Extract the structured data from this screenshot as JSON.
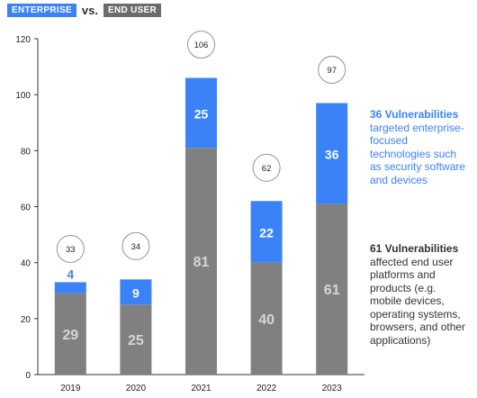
{
  "legend": {
    "enterprise_label": "ENTERPRISE",
    "vs_label": "vs.",
    "end_user_label": "END USER"
  },
  "colors": {
    "enterprise": "#3b82f6",
    "end_user": "#808080",
    "axis": "#333333"
  },
  "annotations": {
    "enterprise_title": "36 Vulnerabilities",
    "enterprise_text": "targeted enterprise-focused technologies such as security software and devices",
    "end_user_title": "61 Vulnerabilities",
    "end_user_text": "affected end user platforms and products (e.g. mobile devices, operating systems, browsers, and other applications)"
  },
  "chart_data": {
    "type": "bar",
    "stacked": true,
    "categories": [
      "2019",
      "2020",
      "2021",
      "2022",
      "2023"
    ],
    "series": [
      {
        "name": "END USER",
        "values": [
          29,
          25,
          81,
          40,
          61
        ]
      },
      {
        "name": "ENTERPRISE",
        "values": [
          4,
          9,
          25,
          22,
          36
        ]
      }
    ],
    "totals": [
      33,
      34,
      106,
      62,
      97
    ],
    "ylim": [
      0,
      120
    ],
    "yticks": [
      0,
      20,
      40,
      60,
      80,
      100,
      120
    ],
    "grid": false
  }
}
